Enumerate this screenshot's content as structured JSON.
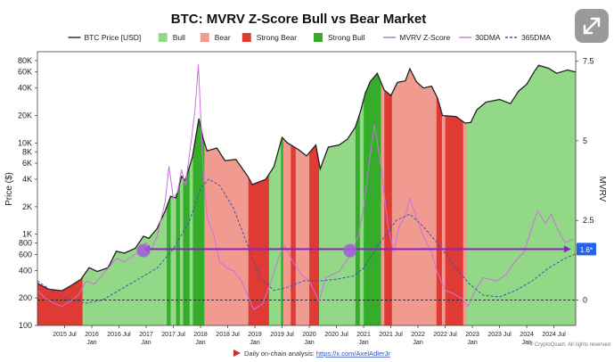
{
  "chart_data": {
    "type": "area",
    "title": "BTC: MVRV Z-Score Bull vs Bear Market",
    "ylabel": "Price ($)",
    "y2label": "MVRV",
    "yscale": "log",
    "ylim": [
      100,
      100000
    ],
    "y2lim": [
      -0.8,
      7.8
    ],
    "legend": {
      "placement": "top",
      "items": [
        {
          "label": "BTC Price [USD]",
          "kind": "line",
          "color": "#222222"
        },
        {
          "label": "Bull",
          "kind": "box",
          "color": "#93d886"
        },
        {
          "label": "Bear",
          "kind": "box",
          "color": "#f19a8f"
        },
        {
          "label": "Strong Bear",
          "kind": "box",
          "color": "#df3a34"
        },
        {
          "label": "Strong Bull",
          "kind": "box",
          "color": "#35ad2a"
        },
        {
          "label": "MVRV Z-Score",
          "kind": "line",
          "color": "#8c84c9"
        },
        {
          "label": "30DMA",
          "kind": "line",
          "color": "#c971df"
        },
        {
          "label": "365DMA",
          "kind": "dash",
          "color": "#3a55b0"
        }
      ]
    },
    "y_ticks": [
      {
        "v": 100,
        "label": "100"
      },
      {
        "v": 200,
        "label": "200"
      },
      {
        "v": 400,
        "label": "400"
      },
      {
        "v": 600,
        "label": "600"
      },
      {
        "v": 800,
        "label": "800"
      },
      {
        "v": 1000,
        "label": "1K"
      },
      {
        "v": 2000,
        "label": "2K"
      },
      {
        "v": 4000,
        "label": "4K"
      },
      {
        "v": 6000,
        "label": "6K"
      },
      {
        "v": 8000,
        "label": "8K"
      },
      {
        "v": 10000,
        "label": "10K"
      },
      {
        "v": 20000,
        "label": "20K"
      },
      {
        "v": 40000,
        "label": "40K"
      },
      {
        "v": 60000,
        "label": "60K"
      },
      {
        "v": 80000,
        "label": "80K"
      }
    ],
    "y2_ticks": [
      {
        "v": 0,
        "label": "0"
      },
      {
        "v": 2.5,
        "label": "2.5"
      },
      {
        "v": 5,
        "label": "5"
      },
      {
        "v": 7.5,
        "label": "7.5"
      }
    ],
    "x_ticks": [
      {
        "x": 2015.5,
        "lines": [
          "2015 Jul"
        ]
      },
      {
        "x": 2016.0,
        "lines": [
          "2016",
          "Jan"
        ]
      },
      {
        "x": 2016.5,
        "lines": [
          "2016 Jul"
        ]
      },
      {
        "x": 2017.0,
        "lines": [
          "2017",
          "Jan"
        ]
      },
      {
        "x": 2017.5,
        "lines": [
          "2017 Jul"
        ]
      },
      {
        "x": 2018.0,
        "lines": [
          "2018",
          "Jan"
        ]
      },
      {
        "x": 2018.5,
        "lines": [
          "2018 Jul"
        ]
      },
      {
        "x": 2019.0,
        "lines": [
          "2019",
          "Jan"
        ]
      },
      {
        "x": 2019.5,
        "lines": [
          "2019 Jul"
        ]
      },
      {
        "x": 2020.0,
        "lines": [
          "2020",
          "Jan"
        ]
      },
      {
        "x": 2020.5,
        "lines": [
          "2020 Jul"
        ]
      },
      {
        "x": 2021.0,
        "lines": [
          "2021",
          "Jan"
        ]
      },
      {
        "x": 2021.5,
        "lines": [
          "2021 Jul"
        ]
      },
      {
        "x": 2022.0,
        "lines": [
          "2022",
          "Jan"
        ]
      },
      {
        "x": 2022.5,
        "lines": [
          "2022 Jul"
        ]
      },
      {
        "x": 2023.0,
        "lines": [
          "2023",
          "Jan"
        ]
      },
      {
        "x": 2023.5,
        "lines": [
          "2023 Jul"
        ]
      },
      {
        "x": 2024.0,
        "lines": [
          "2024",
          "Jan"
        ]
      },
      {
        "x": 2024.5,
        "lines": [
          "2024 Jul"
        ]
      }
    ],
    "xlim": [
      2015.0,
      2024.9
    ],
    "regimes": [
      {
        "from": 2015.0,
        "to": 2015.83,
        "state": "Strong Bear"
      },
      {
        "from": 2015.83,
        "to": 2017.38,
        "state": "Bull"
      },
      {
        "from": 2017.38,
        "to": 2017.45,
        "state": "Strong Bull"
      },
      {
        "from": 2017.45,
        "to": 2017.55,
        "state": "Bull"
      },
      {
        "from": 2017.55,
        "to": 2017.62,
        "state": "Strong Bull"
      },
      {
        "from": 2017.62,
        "to": 2017.68,
        "state": "Bull"
      },
      {
        "from": 2017.68,
        "to": 2017.8,
        "state": "Strong Bull"
      },
      {
        "from": 2017.8,
        "to": 2017.86,
        "state": "Bull"
      },
      {
        "from": 2017.86,
        "to": 2018.07,
        "state": "Strong Bull"
      },
      {
        "from": 2018.07,
        "to": 2018.88,
        "state": "Bear"
      },
      {
        "from": 2018.88,
        "to": 2019.26,
        "state": "Strong Bear"
      },
      {
        "from": 2019.26,
        "to": 2019.48,
        "state": "Bull"
      },
      {
        "from": 2019.48,
        "to": 2019.52,
        "state": "Strong Bull"
      },
      {
        "from": 2019.52,
        "to": 2019.66,
        "state": "Bear"
      },
      {
        "from": 2019.66,
        "to": 2019.75,
        "state": "Strong Bear"
      },
      {
        "from": 2019.75,
        "to": 2020.0,
        "state": "Bear"
      },
      {
        "from": 2020.0,
        "to": 2020.18,
        "state": "Strong Bear"
      },
      {
        "from": 2020.18,
        "to": 2020.85,
        "state": "Bull"
      },
      {
        "from": 2020.85,
        "to": 2020.93,
        "state": "Strong Bull"
      },
      {
        "from": 2020.93,
        "to": 2021.0,
        "state": "Bull"
      },
      {
        "from": 2021.0,
        "to": 2021.32,
        "state": "Strong Bull"
      },
      {
        "from": 2021.32,
        "to": 2021.38,
        "state": "Bear"
      },
      {
        "from": 2021.38,
        "to": 2021.52,
        "state": "Strong Bear"
      },
      {
        "from": 2021.52,
        "to": 2022.34,
        "state": "Bear"
      },
      {
        "from": 2022.34,
        "to": 2022.44,
        "state": "Strong Bear"
      },
      {
        "from": 2022.44,
        "to": 2022.5,
        "state": "Bear"
      },
      {
        "from": 2022.5,
        "to": 2022.83,
        "state": "Strong Bear"
      },
      {
        "from": 2022.83,
        "to": 2022.9,
        "state": "Bear"
      },
      {
        "from": 2022.9,
        "to": 2024.9,
        "state": "Bull"
      }
    ],
    "series": [
      {
        "name": "BTC Price [USD]",
        "axis": "left",
        "color": "#222222",
        "points": [
          [
            2015.0,
            290
          ],
          [
            2015.2,
            250
          ],
          [
            2015.45,
            240
          ],
          [
            2015.6,
            270
          ],
          [
            2015.8,
            320
          ],
          [
            2015.95,
            430
          ],
          [
            2016.1,
            390
          ],
          [
            2016.3,
            430
          ],
          [
            2016.45,
            650
          ],
          [
            2016.6,
            620
          ],
          [
            2016.8,
            700
          ],
          [
            2016.95,
            950
          ],
          [
            2017.05,
            900
          ],
          [
            2017.2,
            1150
          ],
          [
            2017.35,
            1800
          ],
          [
            2017.45,
            2600
          ],
          [
            2017.55,
            2500
          ],
          [
            2017.65,
            4300
          ],
          [
            2017.72,
            3900
          ],
          [
            2017.85,
            7000
          ],
          [
            2017.97,
            18500
          ],
          [
            2018.05,
            11000
          ],
          [
            2018.12,
            8200
          ],
          [
            2018.3,
            8800
          ],
          [
            2018.45,
            6400
          ],
          [
            2018.65,
            6600
          ],
          [
            2018.87,
            4300
          ],
          [
            2018.95,
            3500
          ],
          [
            2019.2,
            4000
          ],
          [
            2019.35,
            5500
          ],
          [
            2019.5,
            11500
          ],
          [
            2019.6,
            10000
          ],
          [
            2019.8,
            8500
          ],
          [
            2019.95,
            7200
          ],
          [
            2020.12,
            9500
          ],
          [
            2020.2,
            5200
          ],
          [
            2020.35,
            9000
          ],
          [
            2020.55,
            9500
          ],
          [
            2020.7,
            11000
          ],
          [
            2020.85,
            15000
          ],
          [
            2020.95,
            23000
          ],
          [
            2021.03,
            35000
          ],
          [
            2021.12,
            47000
          ],
          [
            2021.25,
            58000
          ],
          [
            2021.38,
            38000
          ],
          [
            2021.5,
            33000
          ],
          [
            2021.62,
            46000
          ],
          [
            2021.77,
            48000
          ],
          [
            2021.85,
            65000
          ],
          [
            2021.97,
            47000
          ],
          [
            2022.1,
            40000
          ],
          [
            2022.25,
            42000
          ],
          [
            2022.36,
            31000
          ],
          [
            2022.45,
            20000
          ],
          [
            2022.7,
            19500
          ],
          [
            2022.87,
            16500
          ],
          [
            2022.97,
            16800
          ],
          [
            2023.08,
            23000
          ],
          [
            2023.25,
            28000
          ],
          [
            2023.5,
            30000
          ],
          [
            2023.7,
            27000
          ],
          [
            2023.85,
            37000
          ],
          [
            2024.0,
            44000
          ],
          [
            2024.15,
            62000
          ],
          [
            2024.22,
            71000
          ],
          [
            2024.4,
            66000
          ],
          [
            2024.55,
            58000
          ],
          [
            2024.75,
            63000
          ],
          [
            2024.9,
            60000
          ]
        ]
      },
      {
        "name": "30DMA",
        "axis": "right",
        "color": "#c971df",
        "points": [
          [
            2015.0,
            0.3
          ],
          [
            2015.15,
            0.05
          ],
          [
            2015.3,
            -0.1
          ],
          [
            2015.45,
            -0.2
          ],
          [
            2015.6,
            -0.05
          ],
          [
            2015.75,
            0.15
          ],
          [
            2015.9,
            0.6
          ],
          [
            2016.05,
            0.5
          ],
          [
            2016.2,
            0.8
          ],
          [
            2016.45,
            1.3
          ],
          [
            2016.6,
            1.2
          ],
          [
            2016.85,
            1.5
          ],
          [
            2017.0,
            1.8
          ],
          [
            2017.1,
            1.6
          ],
          [
            2017.2,
            2.0
          ],
          [
            2017.35,
            3.1
          ],
          [
            2017.42,
            4.2
          ],
          [
            2017.5,
            3.2
          ],
          [
            2017.58,
            3.4
          ],
          [
            2017.65,
            4.1
          ],
          [
            2017.72,
            3.6
          ],
          [
            2017.8,
            4.6
          ],
          [
            2017.9,
            6.0
          ],
          [
            2017.96,
            7.4
          ],
          [
            2018.05,
            4.0
          ],
          [
            2018.12,
            2.6
          ],
          [
            2018.25,
            2.0
          ],
          [
            2018.35,
            1.2
          ],
          [
            2018.5,
            1.0
          ],
          [
            2018.62,
            0.9
          ],
          [
            2018.75,
            0.6
          ],
          [
            2018.88,
            0.1
          ],
          [
            2018.98,
            -0.3
          ],
          [
            2019.15,
            -0.1
          ],
          [
            2019.3,
            0.6
          ],
          [
            2019.45,
            1.4
          ],
          [
            2019.55,
            1.7
          ],
          [
            2019.7,
            1.2
          ],
          [
            2019.85,
            0.8
          ],
          [
            2020.0,
            0.6
          ],
          [
            2020.18,
            -0.05
          ],
          [
            2020.3,
            0.7
          ],
          [
            2020.55,
            0.9
          ],
          [
            2020.75,
            1.4
          ],
          [
            2020.9,
            2.0
          ],
          [
            2021.0,
            2.9
          ],
          [
            2021.1,
            4.3
          ],
          [
            2021.2,
            5.5
          ],
          [
            2021.32,
            4.2
          ],
          [
            2021.45,
            2.3
          ],
          [
            2021.55,
            1.5
          ],
          [
            2021.65,
            2.3
          ],
          [
            2021.78,
            2.7
          ],
          [
            2021.85,
            3.2
          ],
          [
            2021.95,
            2.7
          ],
          [
            2022.1,
            2.0
          ],
          [
            2022.25,
            1.5
          ],
          [
            2022.35,
            0.9
          ],
          [
            2022.5,
            0.3
          ],
          [
            2022.65,
            0.2
          ],
          [
            2022.8,
            0.05
          ],
          [
            2022.92,
            -0.2
          ],
          [
            2023.05,
            0.3
          ],
          [
            2023.2,
            0.7
          ],
          [
            2023.45,
            0.6
          ],
          [
            2023.62,
            0.8
          ],
          [
            2023.78,
            1.2
          ],
          [
            2023.95,
            1.5
          ],
          [
            2024.1,
            2.3
          ],
          [
            2024.2,
            2.8
          ],
          [
            2024.35,
            2.4
          ],
          [
            2024.45,
            2.7
          ],
          [
            2024.55,
            2.3
          ],
          [
            2024.7,
            1.8
          ],
          [
            2024.85,
            1.9
          ]
        ]
      },
      {
        "name": "365DMA",
        "axis": "right",
        "color": "#3a55b0",
        "points": [
          [
            2015.0,
            0.6
          ],
          [
            2015.3,
            0.25
          ],
          [
            2015.6,
            0.0
          ],
          [
            2015.9,
            -0.1
          ],
          [
            2016.2,
            0.0
          ],
          [
            2016.5,
            0.3
          ],
          [
            2016.9,
            0.7
          ],
          [
            2017.2,
            1.0
          ],
          [
            2017.5,
            1.6
          ],
          [
            2017.8,
            2.5
          ],
          [
            2018.0,
            3.5
          ],
          [
            2018.15,
            3.8
          ],
          [
            2018.35,
            3.6
          ],
          [
            2018.6,
            2.9
          ],
          [
            2018.85,
            1.8
          ],
          [
            2019.1,
            0.7
          ],
          [
            2019.35,
            0.3
          ],
          [
            2019.6,
            0.4
          ],
          [
            2019.9,
            0.6
          ],
          [
            2020.2,
            0.6
          ],
          [
            2020.5,
            0.65
          ],
          [
            2020.8,
            0.75
          ],
          [
            2021.0,
            1.0
          ],
          [
            2021.3,
            1.8
          ],
          [
            2021.6,
            2.5
          ],
          [
            2021.85,
            2.7
          ],
          [
            2022.1,
            2.3
          ],
          [
            2022.4,
            1.7
          ],
          [
            2022.7,
            1.0
          ],
          [
            2022.95,
            0.5
          ],
          [
            2023.2,
            0.15
          ],
          [
            2023.5,
            0.1
          ],
          [
            2023.8,
            0.3
          ],
          [
            2024.1,
            0.6
          ],
          [
            2024.4,
            1.0
          ],
          [
            2024.7,
            1.3
          ],
          [
            2024.9,
            1.45
          ]
        ]
      }
    ],
    "reference_lines": [
      {
        "axis": "right",
        "value": 0,
        "style": "dashed",
        "color": "#222222"
      },
      {
        "axis": "right",
        "value": 1.6,
        "style": "solid",
        "color": "#8a22c9",
        "label": "1.6*",
        "arrows": true
      }
    ],
    "markers": [
      {
        "x": 2016.95,
        "axis": "right",
        "y": 1.55,
        "color": "#a05ddc"
      },
      {
        "x": 2020.75,
        "axis": "right",
        "y": 1.55,
        "color": "#a05ddc"
      }
    ],
    "footer": {
      "text": "Daily on-chain analysis: ",
      "link": "https://x.com/AxelAdlerJr",
      "copyright": "© CryptoQuant. All rights reserved"
    }
  }
}
